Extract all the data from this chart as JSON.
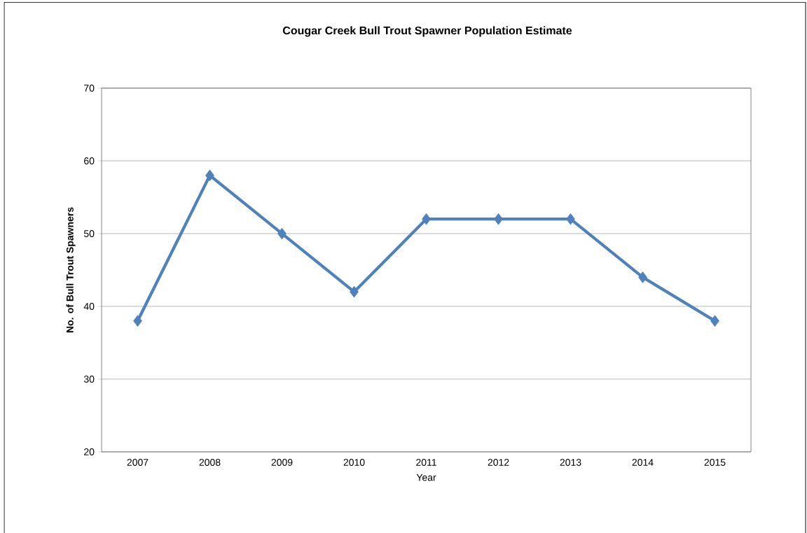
{
  "chart_data": {
    "type": "line",
    "title": "Cougar Creek Bull Trout Spawner Population Estimate",
    "xlabel": "Year",
    "ylabel": "No. of  Bull Trout Spawners",
    "categories": [
      "2007",
      "2008",
      "2009",
      "2010",
      "2011",
      "2012",
      "2013",
      "2014",
      "2015"
    ],
    "values": [
      38,
      58,
      50,
      42,
      52,
      52,
      52,
      44,
      38
    ],
    "color": "#4f81bd",
    "ylim": [
      20,
      70
    ],
    "yticks": [
      20,
      30,
      40,
      50,
      60,
      70
    ],
    "grid": "y",
    "marker": "diamond"
  }
}
